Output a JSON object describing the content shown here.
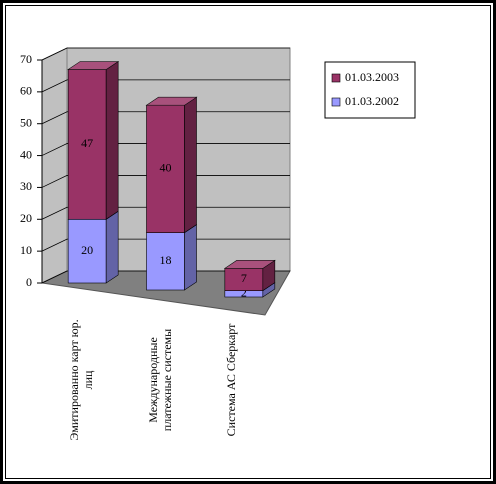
{
  "chart_data": {
    "type": "bar3d_stacked",
    "categories": [
      "Эмитированно карт юр.\nлиц",
      "Международные\nплатежные системы",
      "Система АС Сберкарт"
    ],
    "series": [
      {
        "name": "01.03.2002",
        "color": "#9999ff",
        "values": [
          20,
          18,
          2
        ]
      },
      {
        "name": "01.03.2003",
        "color": "#993366",
        "values": [
          47,
          40,
          7
        ]
      }
    ],
    "ylim": [
      0,
      70
    ],
    "yticks": [
      0,
      10,
      20,
      30,
      40,
      50,
      60,
      70
    ],
    "grid": true,
    "legend": "right"
  }
}
